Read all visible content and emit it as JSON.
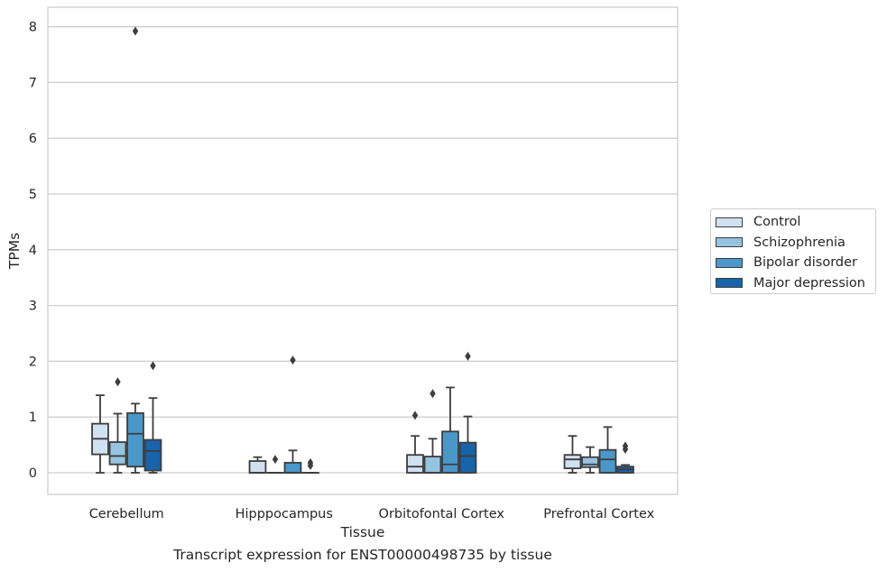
{
  "chart_data": {
    "type": "box",
    "title": "",
    "caption": "Transcript expression for ENST00000498735 by tissue",
    "xlabel": "Tissue",
    "ylabel": "TPMs",
    "ylim": [
      -0.38,
      8.35
    ],
    "yticks": [
      0,
      1,
      2,
      3,
      4,
      5,
      6,
      7,
      8
    ],
    "grid": "horizontal",
    "legend_position": "right",
    "categories": [
      "Cerebellum",
      "Hipppocampus",
      "Orbitofontal Cortex",
      "Prefrontal Cortex"
    ],
    "series": [
      {
        "name": "Control",
        "color": "#d0e1f2",
        "boxes": [
          {
            "whislo": 0.0,
            "q1": 0.33,
            "med": 0.61,
            "q3": 0.88,
            "whishi": 1.39,
            "fliers": []
          },
          {
            "whislo": 0.0,
            "q1": 0.0,
            "med": 0.0,
            "q3": 0.21,
            "whishi": 0.28,
            "fliers": []
          },
          {
            "whislo": 0.0,
            "q1": 0.0,
            "med": 0.11,
            "q3": 0.32,
            "whishi": 0.66,
            "fliers": [
              1.03
            ]
          },
          {
            "whislo": 0.0,
            "q1": 0.08,
            "med": 0.24,
            "q3": 0.32,
            "whishi": 0.66,
            "fliers": []
          }
        ]
      },
      {
        "name": "Schizophrenia",
        "color": "#94c4df",
        "boxes": [
          {
            "whislo": 0.0,
            "q1": 0.15,
            "med": 0.3,
            "q3": 0.55,
            "whishi": 1.06,
            "fliers": [
              1.63
            ]
          },
          {
            "whislo": 0.0,
            "q1": 0.0,
            "med": 0.0,
            "q3": 0.0,
            "whishi": 0.0,
            "fliers": [
              0.24
            ]
          },
          {
            "whislo": 0.0,
            "q1": 0.0,
            "med": 0.0,
            "q3": 0.29,
            "whishi": 0.61,
            "fliers": [
              1.42
            ]
          },
          {
            "whislo": 0.0,
            "q1": 0.1,
            "med": 0.15,
            "q3": 0.28,
            "whishi": 0.46,
            "fliers": []
          }
        ]
      },
      {
        "name": "Bipolar disorder",
        "color": "#4a98c9",
        "boxes": [
          {
            "whislo": 0.0,
            "q1": 0.11,
            "med": 0.7,
            "q3": 1.07,
            "whishi": 1.24,
            "fliers": [
              7.92
            ]
          },
          {
            "whislo": 0.0,
            "q1": 0.0,
            "med": 0.0,
            "q3": 0.18,
            "whishi": 0.4,
            "fliers": [
              2.02
            ]
          },
          {
            "whislo": 0.0,
            "q1": 0.0,
            "med": 0.15,
            "q3": 0.74,
            "whishi": 1.53,
            "fliers": []
          },
          {
            "whislo": 0.0,
            "q1": 0.0,
            "med": 0.24,
            "q3": 0.41,
            "whishi": 0.82,
            "fliers": []
          }
        ]
      },
      {
        "name": "Major depression",
        "color": "#1764ab",
        "boxes": [
          {
            "whislo": 0.0,
            "q1": 0.04,
            "med": 0.39,
            "q3": 0.59,
            "whishi": 1.34,
            "fliers": [
              1.92
            ]
          },
          {
            "whislo": 0.0,
            "q1": 0.0,
            "med": 0.0,
            "q3": 0.0,
            "whishi": 0.0,
            "fliers": [
              0.13,
              0.18
            ]
          },
          {
            "whislo": 0.0,
            "q1": 0.0,
            "med": 0.3,
            "q3": 0.54,
            "whishi": 1.01,
            "fliers": [
              2.09
            ]
          },
          {
            "whislo": 0.0,
            "q1": 0.0,
            "med": 0.06,
            "q3": 0.11,
            "whishi": 0.14,
            "fliers": [
              0.42,
              0.48
            ]
          }
        ]
      }
    ]
  }
}
